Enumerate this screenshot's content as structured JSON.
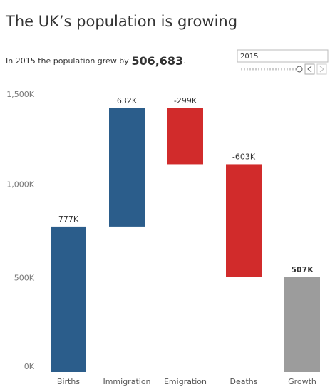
{
  "chart_data": {
    "type": "waterfall",
    "title": "The UK’s population is growing",
    "subtitle_before": "In 2015 the population grew by",
    "subtitle_value": "506,683",
    "subtitle_after": ".",
    "year_selector": "2015",
    "categories": [
      "Births",
      "Immigration",
      "Emigration",
      "Deaths",
      "Growth"
    ],
    "values": [
      777,
      632,
      -299,
      -603,
      507
    ],
    "value_labels": [
      "777K",
      "632K",
      "-299K",
      "-603K",
      "507K"
    ],
    "totals": [
      false,
      false,
      false,
      false,
      true
    ],
    "colors": [
      "#2b5d8b",
      "#2b5d8b",
      "#d12b2b",
      "#d12b2b",
      "#9c9c9c"
    ],
    "ylim": [
      0,
      1500
    ],
    "yticks": [
      {
        "value": 0,
        "label": "0K"
      },
      {
        "value": 500,
        "label": "500K"
      },
      {
        "value": 1000,
        "label": "1,000K"
      },
      {
        "value": 1500,
        "label": "1,500K"
      }
    ],
    "grid": false
  }
}
